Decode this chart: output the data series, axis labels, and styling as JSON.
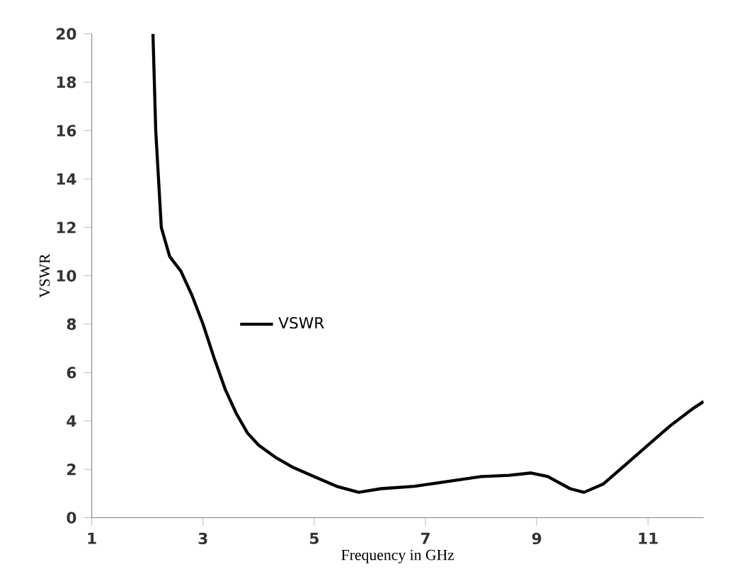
{
  "chart_data": {
    "type": "line",
    "xlabel": "Frequency in GHz",
    "ylabel": "VSWR",
    "xlim": [
      1,
      12
    ],
    "ylim": [
      0,
      20
    ],
    "xticks": [
      1,
      3,
      5,
      7,
      9,
      11
    ],
    "yticks": [
      0,
      2,
      4,
      6,
      8,
      10,
      12,
      14,
      16,
      18,
      20
    ],
    "grid": false,
    "legend": "left",
    "marker": "none",
    "line_style": "solid",
    "series": [
      {
        "name": "VSWR",
        "color": "#000000",
        "x": [
          2.1,
          2.15,
          2.25,
          2.4,
          2.6,
          2.8,
          3.0,
          3.2,
          3.4,
          3.6,
          3.8,
          4.0,
          4.3,
          4.6,
          5.0,
          5.4,
          5.8,
          6.2,
          6.8,
          7.4,
          8.0,
          8.5,
          8.9,
          9.2,
          9.6,
          9.85,
          10.2,
          10.6,
          11.0,
          11.4,
          11.8,
          12.0
        ],
        "values": [
          20,
          16,
          12,
          10.8,
          10.2,
          9.2,
          8.0,
          6.6,
          5.3,
          4.3,
          3.5,
          3.0,
          2.5,
          2.1,
          1.7,
          1.3,
          1.05,
          1.2,
          1.3,
          1.5,
          1.7,
          1.75,
          1.85,
          1.7,
          1.2,
          1.05,
          1.4,
          2.2,
          3.0,
          3.8,
          4.5,
          4.8
        ]
      }
    ]
  }
}
